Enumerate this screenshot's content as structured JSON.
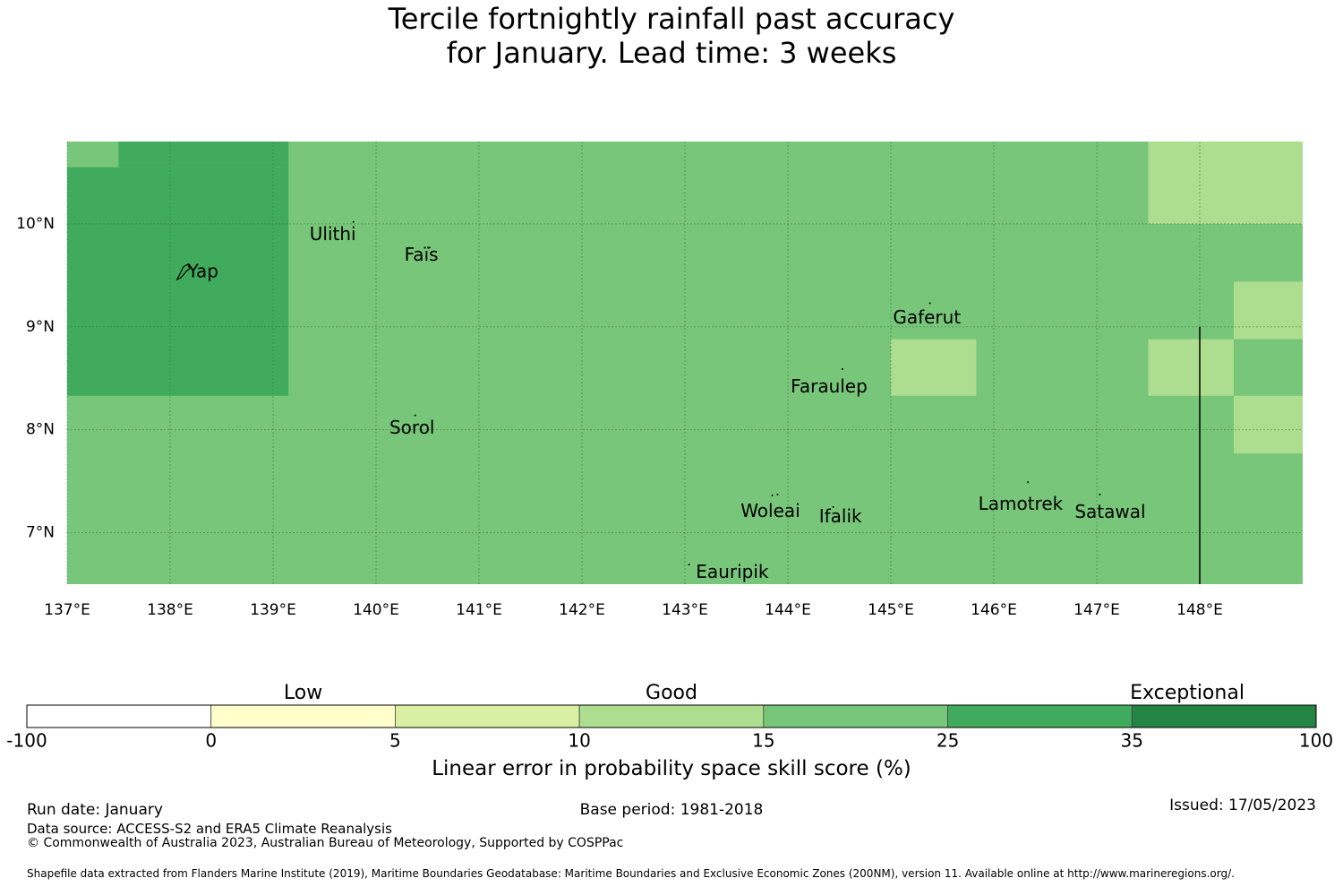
{
  "title": {
    "line1": "Tercile fortnightly rainfall past accuracy",
    "line2": "for January. Lead time: 3 weeks"
  },
  "map": {
    "lon_range": [
      137.0,
      149.0
    ],
    "lat_range": [
      6.5,
      10.8
    ],
    "x_ticks": [
      {
        "value": 137,
        "label": "137°E"
      },
      {
        "value": 138,
        "label": "138°E"
      },
      {
        "value": 139,
        "label": "139°E"
      },
      {
        "value": 140,
        "label": "140°E"
      },
      {
        "value": 141,
        "label": "141°E"
      },
      {
        "value": 142,
        "label": "142°E"
      },
      {
        "value": 143,
        "label": "143°E"
      },
      {
        "value": 144,
        "label": "144°E"
      },
      {
        "value": 145,
        "label": "145°E"
      },
      {
        "value": 146,
        "label": "146°E"
      },
      {
        "value": 147,
        "label": "147°E"
      },
      {
        "value": 148,
        "label": "148°E"
      }
    ],
    "y_ticks": [
      {
        "value": 10,
        "label": "10°N"
      },
      {
        "value": 9,
        "label": "9°N"
      },
      {
        "value": 8,
        "label": "8°N"
      },
      {
        "value": 7,
        "label": "7°N"
      }
    ],
    "background_class": "15-25",
    "skill_cells": [
      {
        "lon": [
          137.0,
          137.5
        ],
        "lat": [
          10.55,
          10.8
        ],
        "class": "15-25"
      },
      {
        "lon": [
          137.5,
          139.15
        ],
        "lat": [
          10.55,
          10.8
        ],
        "class": "25-35"
      },
      {
        "lon": [
          137.0,
          139.15
        ],
        "lat": [
          8.33,
          10.55
        ],
        "class": "25-35"
      },
      {
        "lon": [
          147.5,
          149.0
        ],
        "lat": [
          10.0,
          10.8
        ],
        "class": "10-15"
      },
      {
        "lon": [
          148.33,
          149.0
        ],
        "lat": [
          8.88,
          9.44
        ],
        "class": "10-15"
      },
      {
        "lon": [
          147.5,
          148.33
        ],
        "lat": [
          8.33,
          8.88
        ],
        "class": "10-15"
      },
      {
        "lon": [
          148.33,
          149.0
        ],
        "lat": [
          7.77,
          8.33
        ],
        "class": "10-15"
      },
      {
        "lon": [
          145.0,
          145.83
        ],
        "lat": [
          8.33,
          8.88
        ],
        "class": "10-15"
      }
    ],
    "boundary_line": [
      [
        148.0,
        9.0
      ],
      [
        148.0,
        6.5
      ]
    ],
    "islands": [
      {
        "name": "Yap",
        "lon": 138.12,
        "lat": 9.53,
        "label_dlon": 0.2,
        "label_dlat": 0.0
      },
      {
        "name": "Ulithi",
        "lon": 139.78,
        "lat": 10.02,
        "label_dlon": -0.2,
        "label_dlat": -0.13
      },
      {
        "name": "Faïs",
        "lon": 140.52,
        "lat": 9.77,
        "label_dlon": -0.08,
        "label_dlat": -0.08
      },
      {
        "name": "Gaferut",
        "lon": 145.38,
        "lat": 9.23,
        "label_dlon": -0.03,
        "label_dlat": -0.15
      },
      {
        "name": "Faraulep",
        "lon": 144.53,
        "lat": 8.59,
        "label_dlon": -0.13,
        "label_dlat": -0.18
      },
      {
        "name": "Sorol",
        "lon": 140.38,
        "lat": 8.14,
        "label_dlon": -0.03,
        "label_dlat": -0.13
      },
      {
        "name": "Woleai",
        "lon": 143.9,
        "lat": 7.37,
        "label_dlon": -0.07,
        "label_dlat": -0.17
      },
      {
        "name": "Ifalik",
        "lon": 144.44,
        "lat": 7.25,
        "label_dlon": 0.07,
        "label_dlat": -0.1
      },
      {
        "name": "Lamotrek",
        "lon": 146.33,
        "lat": 7.49,
        "label_dlon": -0.07,
        "label_dlat": -0.22
      },
      {
        "name": "Satawal",
        "lon": 147.03,
        "lat": 7.37,
        "label_dlon": 0.1,
        "label_dlat": -0.18
      },
      {
        "name": "Eauripik",
        "lon": 143.04,
        "lat": 6.69,
        "label_dlon": 0.42,
        "label_dlat": -0.08
      }
    ]
  },
  "legend": {
    "categories": [
      {
        "label": "Low",
        "at_bin": 1.5
      },
      {
        "label": "Good",
        "at_bin": 3.5
      },
      {
        "label": "Exceptional",
        "at_bin": 6.3
      }
    ],
    "bins": [
      {
        "from": "-100",
        "to": "0",
        "color": "#ffffff"
      },
      {
        "from": "0",
        "to": "5",
        "color": "#ffffcc"
      },
      {
        "from": "5",
        "to": "10",
        "color": "#d9f0a3"
      },
      {
        "from": "10",
        "to": "15",
        "color": "#addd8e"
      },
      {
        "from": "15",
        "to": "25",
        "color": "#78c679"
      },
      {
        "from": "25",
        "to": "35",
        "color": "#41ab5d"
      },
      {
        "from": "35",
        "to": "100",
        "color": "#238443"
      }
    ],
    "tick_labels": [
      "-100",
      "0",
      "5",
      "10",
      "15",
      "25",
      "35",
      "100"
    ],
    "axis_label": "Linear error in probability space skill score (%)"
  },
  "class_colors": {
    "10-15": "#addd8e",
    "15-25": "#78c679",
    "25-35": "#41ab5d"
  },
  "footer": {
    "run_date": "Run date: January",
    "base_period": "Base period: 1981-2018",
    "issued": "Issued: 17/05/2023",
    "data_source": "Data source: ACCESS-S2 and ERA5 Climate Reanalysis",
    "copyright": "© Commonwealth of Australia 2023, Australian Bureau of Meteorology, Supported by COSPPac",
    "shapefile": "Shapefile data extracted from Flanders Marine Institute (2019), Maritime Boundaries Geodatabase: Maritime Boundaries and Exclusive Economic Zones (200NM), version 11. Available online at http://www.marineregions.org/."
  }
}
